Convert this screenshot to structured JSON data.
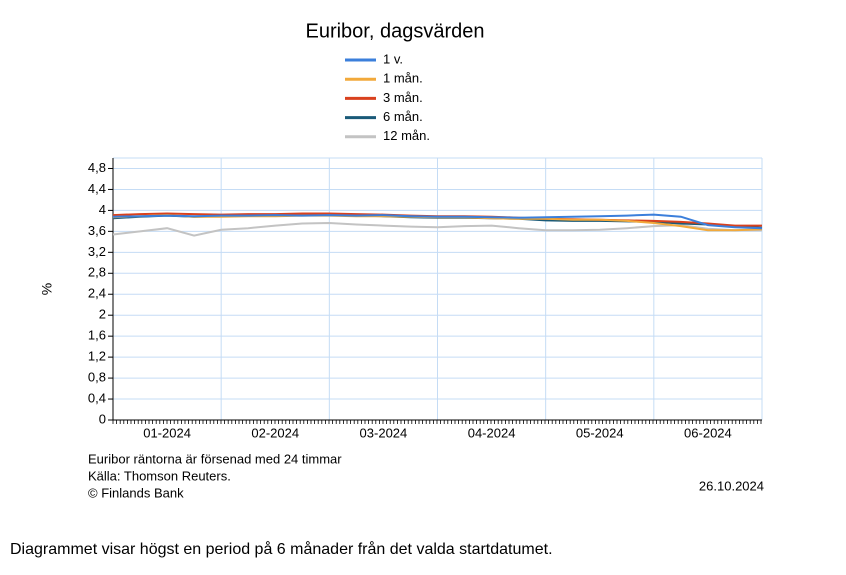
{
  "chart_data": {
    "type": "line",
    "title": "Euribor, dagsvärden",
    "ylabel": "%",
    "xlim": [
      0,
      6
    ],
    "xticks": [
      {
        "value": 0.5,
        "label": "01-2024"
      },
      {
        "value": 1.5,
        "label": "02-2024"
      },
      {
        "value": 2.5,
        "label": "03-2024"
      },
      {
        "value": 3.5,
        "label": "04-2024"
      },
      {
        "value": 4.5,
        "label": "05-2024"
      },
      {
        "value": 5.5,
        "label": "06-2024"
      }
    ],
    "x_gridlines": [
      1,
      2,
      3,
      4,
      5,
      6
    ],
    "ylim": [
      0,
      5
    ],
    "yticks": [
      0,
      {
        "value": 0.4,
        "label": "0,4"
      },
      {
        "value": 0.8,
        "label": "0,8"
      },
      {
        "value": 1.2,
        "label": "1,2"
      },
      {
        "value": 1.6,
        "label": "1,6"
      },
      2,
      {
        "value": 2.4,
        "label": "2,4"
      },
      {
        "value": 2.8,
        "label": "2,8"
      },
      {
        "value": 3.2,
        "label": "3,2"
      },
      {
        "value": 3.6,
        "label": "3,6"
      },
      4,
      {
        "value": 4.4,
        "label": "4,4"
      },
      {
        "value": 4.8,
        "label": "4,8"
      }
    ],
    "grid": true,
    "x": [
      0,
      0.25,
      0.5,
      0.75,
      1,
      1.25,
      1.5,
      1.75,
      2,
      2.25,
      2.5,
      2.75,
      3,
      3.25,
      3.5,
      3.75,
      4,
      4.25,
      4.5,
      4.75,
      5,
      5.25,
      5.5,
      5.75,
      6
    ],
    "series": [
      {
        "name": "1 v.",
        "color": "#3b7fdb",
        "values": [
          3.88,
          3.89,
          3.9,
          3.89,
          3.9,
          3.9,
          3.91,
          3.9,
          3.91,
          3.9,
          3.91,
          3.89,
          3.88,
          3.88,
          3.87,
          3.86,
          3.87,
          3.88,
          3.89,
          3.9,
          3.92,
          3.88,
          3.72,
          3.68,
          3.66
        ]
      },
      {
        "name": "1 mån.",
        "color": "#f2a93b",
        "values": [
          3.87,
          3.89,
          3.91,
          3.88,
          3.88,
          3.89,
          3.89,
          3.9,
          3.9,
          3.89,
          3.89,
          3.88,
          3.87,
          3.87,
          3.85,
          3.84,
          3.84,
          3.82,
          3.82,
          3.8,
          3.76,
          3.7,
          3.62,
          3.62,
          3.64
        ]
      },
      {
        "name": "3 mån.",
        "color": "#d9411e",
        "values": [
          3.91,
          3.93,
          3.94,
          3.93,
          3.92,
          3.93,
          3.93,
          3.94,
          3.94,
          3.93,
          3.92,
          3.9,
          3.89,
          3.89,
          3.88,
          3.86,
          3.84,
          3.83,
          3.82,
          3.81,
          3.8,
          3.78,
          3.75,
          3.71,
          3.71
        ]
      },
      {
        "name": "6 mån.",
        "color": "#1a5a78",
        "values": [
          3.85,
          3.88,
          3.9,
          3.88,
          3.89,
          3.9,
          3.91,
          3.91,
          3.91,
          3.9,
          3.89,
          3.87,
          3.86,
          3.86,
          3.85,
          3.84,
          3.81,
          3.8,
          3.8,
          3.79,
          3.78,
          3.75,
          3.73,
          3.7,
          3.67
        ]
      },
      {
        "name": "12 mån.",
        "color": "#c3c3c3",
        "values": [
          3.54,
          3.6,
          3.66,
          3.52,
          3.63,
          3.66,
          3.71,
          3.75,
          3.76,
          3.73,
          3.71,
          3.69,
          3.68,
          3.7,
          3.71,
          3.66,
          3.62,
          3.62,
          3.63,
          3.66,
          3.7,
          3.72,
          3.65,
          3.62,
          3.62
        ]
      }
    ],
    "notes": [
      "Euribor räntorna är försenad med 24 timmar",
      "Källa: Thomson Reuters.",
      "© Finlands Bank"
    ],
    "date": "26.10.2024"
  },
  "caption": "Diagrammet visar högst en period på 6 månader från det valda startdatumet."
}
